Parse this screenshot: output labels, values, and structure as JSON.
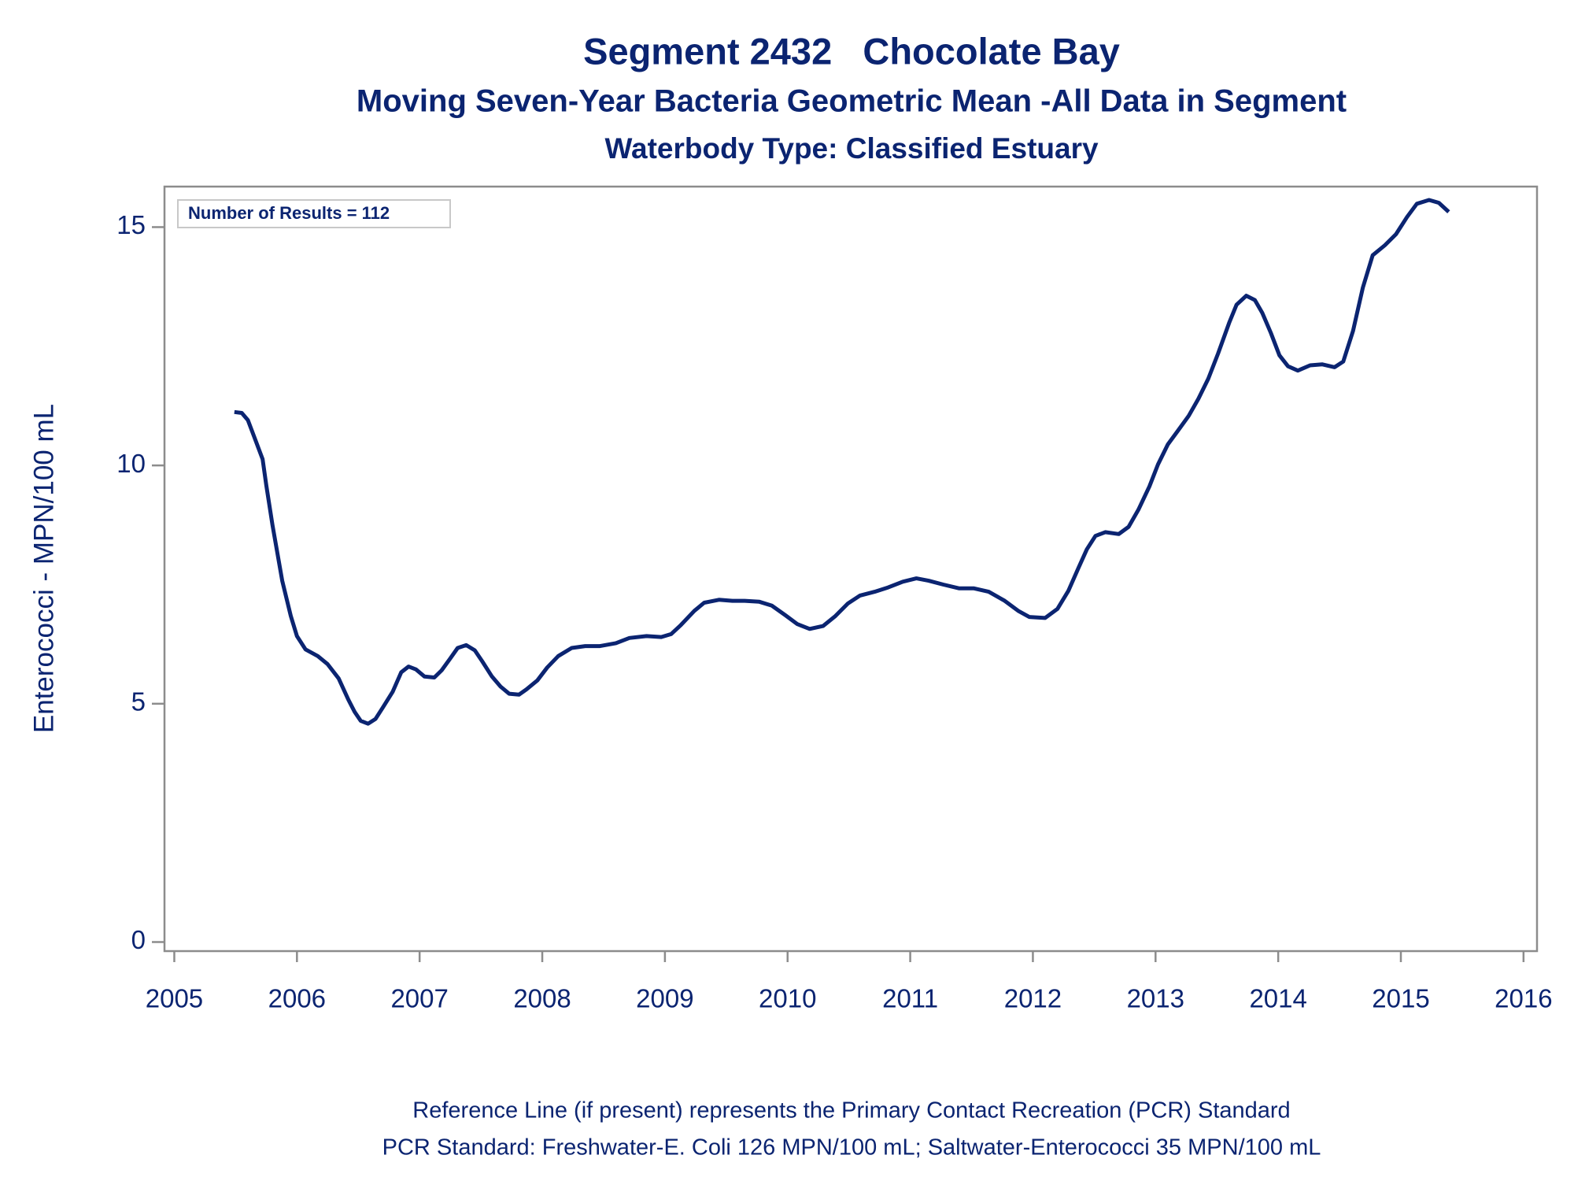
{
  "chart_data": {
    "type": "line",
    "title": "Segment 2432   Chocolate Bay",
    "subtitles": [
      "Moving Seven-Year Bacteria Geometric Mean -All Data in Segment",
      "Waterbody Type: Classified Estuary"
    ],
    "ylabel": "Enterococci - MPN/100 mL",
    "annotation": "Number of Results = 112",
    "footnotes": [
      "Reference Line (if present) represents the Primary Contact Recreation (PCR) Standard",
      "PCR Standard: Freshwater-E. Coli 126 MPN/100 mL; Saltwater-Enterococci 35 MPN/100 mL"
    ],
    "x": [
      2005.49,
      2005.55,
      2005.6,
      2005.65,
      2005.72,
      2005.75,
      2005.8,
      2005.88,
      2005.95,
      2006.0,
      2006.07,
      2006.17,
      2006.25,
      2006.34,
      2006.42,
      2006.47,
      2006.52,
      2006.58,
      2006.64,
      2006.7,
      2006.78,
      2006.85,
      2006.91,
      2006.97,
      2007.04,
      2007.12,
      2007.18,
      2007.25,
      2007.31,
      2007.38,
      2007.45,
      2007.51,
      2007.59,
      2007.66,
      2007.73,
      2007.81,
      2007.87,
      2007.96,
      2008.04,
      2008.13,
      2008.24,
      2008.35,
      2008.47,
      2008.6,
      2008.71,
      2008.85,
      2008.97,
      2009.05,
      2009.13,
      2009.24,
      2009.32,
      2009.44,
      2009.55,
      2009.65,
      2009.77,
      2009.87,
      2009.98,
      2010.08,
      2010.18,
      2010.29,
      2010.39,
      2010.49,
      2010.59,
      2010.71,
      2010.82,
      2010.94,
      2011.05,
      2011.15,
      2011.27,
      2011.4,
      2011.52,
      2011.64,
      2011.77,
      2011.88,
      2011.97,
      2012.1,
      2012.2,
      2012.29,
      2012.37,
      2012.44,
      2012.51,
      2012.59,
      2012.7,
      2012.78,
      2012.86,
      2012.95,
      2013.02,
      2013.1,
      2013.18,
      2013.27,
      2013.35,
      2013.43,
      2013.51,
      2013.6,
      2013.66,
      2013.74,
      2013.81,
      2013.87,
      2013.94,
      2014.01,
      2014.08,
      2014.16,
      2014.26,
      2014.36,
      2014.46,
      2014.53,
      2014.61,
      2014.69,
      2014.77,
      2014.87,
      2014.96,
      2015.05,
      2015.13,
      2015.23,
      2015.31,
      2015.39
    ],
    "series": [
      {
        "color": "#0b2471",
        "values": [
          11.12,
          11.1,
          10.95,
          10.61,
          10.13,
          9.58,
          8.75,
          7.58,
          6.84,
          6.42,
          6.14,
          6.0,
          5.83,
          5.53,
          5.08,
          4.83,
          4.64,
          4.58,
          4.68,
          4.92,
          5.25,
          5.66,
          5.78,
          5.72,
          5.57,
          5.55,
          5.7,
          5.95,
          6.17,
          6.23,
          6.12,
          5.89,
          5.57,
          5.36,
          5.21,
          5.19,
          5.3,
          5.49,
          5.76,
          6.0,
          6.17,
          6.21,
          6.21,
          6.27,
          6.38,
          6.42,
          6.4,
          6.46,
          6.65,
          6.95,
          7.12,
          7.18,
          7.16,
          7.16,
          7.14,
          7.06,
          6.86,
          6.67,
          6.57,
          6.63,
          6.84,
          7.1,
          7.27,
          7.35,
          7.44,
          7.56,
          7.63,
          7.58,
          7.5,
          7.42,
          7.42,
          7.35,
          7.16,
          6.95,
          6.82,
          6.8,
          6.99,
          7.37,
          7.84,
          8.24,
          8.52,
          8.6,
          8.56,
          8.71,
          9.07,
          9.56,
          10.02,
          10.44,
          10.72,
          11.04,
          11.4,
          11.82,
          12.35,
          12.99,
          13.37,
          13.56,
          13.47,
          13.2,
          12.78,
          12.31,
          12.08,
          11.99,
          12.1,
          12.12,
          12.06,
          12.18,
          12.82,
          13.73,
          14.41,
          14.62,
          14.85,
          15.21,
          15.49,
          15.57,
          15.51,
          15.32
        ]
      }
    ],
    "xlim": [
      2004.92,
      2016.11
    ],
    "xticks": [
      2005,
      2006,
      2007,
      2008,
      2009,
      2010,
      2011,
      2012,
      2013,
      2014,
      2015,
      2016
    ],
    "ylim": [
      -0.19,
      15.85
    ],
    "yticks": [
      0,
      5,
      10,
      15
    ],
    "grid": false
  }
}
